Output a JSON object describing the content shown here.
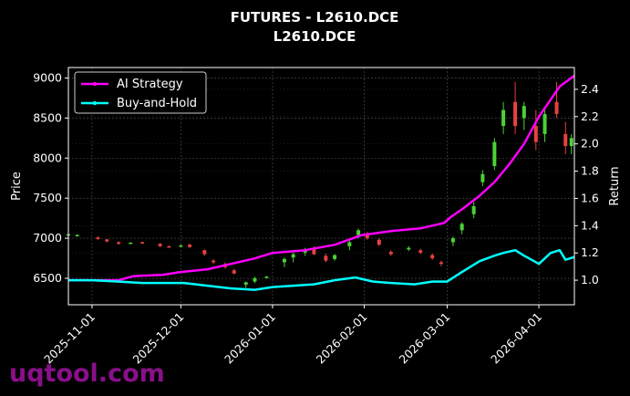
{
  "chart_data": {
    "type": "line",
    "title": "FUTURES - L2610.DCE",
    "subtitle": "L2610.DCE",
    "ylabel_left": "Price",
    "ylabel_right": "Return",
    "watermark": "uqtool.com",
    "grid": true,
    "legend_placement": "top-left",
    "background": "#000000",
    "colors": {
      "ai_strategy": "#ff00ff",
      "buy_and_hold": "#00ffff",
      "candle_up": "#4cd137",
      "candle_down": "#e84141",
      "grid": "#555555"
    },
    "x_range": [
      "2025-10-24",
      "2026-04-13"
    ],
    "price_ylim": [
      6170,
      9130
    ],
    "return_ylim": [
      0.82,
      2.56
    ],
    "price_ticks": [
      6500,
      7000,
      7500,
      8000,
      8500,
      9000
    ],
    "return_ticks": [
      1.0,
      1.2,
      1.4,
      1.6,
      1.8,
      2.0,
      2.2,
      2.4
    ],
    "x_ticks": [
      "2025-11-01",
      "2025-12-01",
      "2026-01-01",
      "2026-02-01",
      "2026-03-01",
      "2026-04-01"
    ],
    "series": [
      {
        "name": "AI Strategy",
        "axis": "return",
        "points": [
          [
            "2025-10-24",
            1.0
          ],
          [
            "2025-11-01",
            1.0
          ],
          [
            "2025-11-10",
            1.0
          ],
          [
            "2025-11-15",
            1.03
          ],
          [
            "2025-11-25",
            1.04
          ],
          [
            "2025-12-01",
            1.06
          ],
          [
            "2025-12-10",
            1.08
          ],
          [
            "2025-12-18",
            1.12
          ],
          [
            "2025-12-26",
            1.16
          ],
          [
            "2026-01-01",
            1.2
          ],
          [
            "2026-01-12",
            1.22
          ],
          [
            "2026-01-22",
            1.26
          ],
          [
            "2026-01-31",
            1.33
          ],
          [
            "2026-02-10",
            1.36
          ],
          [
            "2026-02-20",
            1.38
          ],
          [
            "2026-02-28",
            1.42
          ],
          [
            "2026-03-02",
            1.46
          ],
          [
            "2026-03-06",
            1.52
          ],
          [
            "2026-03-12",
            1.62
          ],
          [
            "2026-03-17",
            1.72
          ],
          [
            "2026-03-22",
            1.85
          ],
          [
            "2026-03-27",
            2.0
          ],
          [
            "2026-04-01",
            2.2
          ],
          [
            "2026-04-08",
            2.42
          ],
          [
            "2026-04-13",
            2.5
          ]
        ]
      },
      {
        "name": "Buy-and-Hold",
        "axis": "return",
        "points": [
          [
            "2025-10-24",
            1.0
          ],
          [
            "2025-11-01",
            1.0
          ],
          [
            "2025-11-10",
            0.99
          ],
          [
            "2025-11-18",
            0.98
          ],
          [
            "2025-11-25",
            0.98
          ],
          [
            "2025-12-02",
            0.98
          ],
          [
            "2025-12-10",
            0.96
          ],
          [
            "2025-12-18",
            0.94
          ],
          [
            "2025-12-26",
            0.93
          ],
          [
            "2026-01-01",
            0.95
          ],
          [
            "2026-01-08",
            0.96
          ],
          [
            "2026-01-15",
            0.97
          ],
          [
            "2026-01-22",
            1.0
          ],
          [
            "2026-01-29",
            1.02
          ],
          [
            "2026-02-04",
            0.99
          ],
          [
            "2026-02-10",
            0.98
          ],
          [
            "2026-02-18",
            0.97
          ],
          [
            "2026-02-24",
            0.99
          ],
          [
            "2026-03-01",
            0.99
          ],
          [
            "2026-03-06",
            1.06
          ],
          [
            "2026-03-12",
            1.14
          ],
          [
            "2026-03-17",
            1.18
          ],
          [
            "2026-03-20",
            1.2
          ],
          [
            "2026-03-24",
            1.22
          ],
          [
            "2026-03-27",
            1.18
          ],
          [
            "2026-04-01",
            1.12
          ],
          [
            "2026-04-05",
            1.2
          ],
          [
            "2026-04-08",
            1.22
          ],
          [
            "2026-04-10",
            1.15
          ],
          [
            "2026-04-13",
            1.17
          ]
        ]
      }
    ],
    "candles_note": "OHLC candlesticks on the Price axis",
    "candles": [
      [
        "2025-10-24",
        7050,
        7060,
        7040,
        7050
      ],
      [
        "2025-10-27",
        7040,
        7050,
        7030,
        7040
      ],
      [
        "2025-11-03",
        7010,
        7020,
        6980,
        6990
      ],
      [
        "2025-11-06",
        6985,
        6990,
        6950,
        6960
      ],
      [
        "2025-11-10",
        6950,
        6960,
        6920,
        6930
      ],
      [
        "2025-11-14",
        6940,
        6950,
        6930,
        6945
      ],
      [
        "2025-11-18",
        6950,
        6960,
        6930,
        6935
      ],
      [
        "2025-11-24",
        6930,
        6940,
        6890,
        6900
      ],
      [
        "2025-11-27",
        6900,
        6910,
        6880,
        6890
      ],
      [
        "2025-12-01",
        6900,
        6920,
        6890,
        6910
      ],
      [
        "2025-12-04",
        6920,
        6930,
        6880,
        6890
      ],
      [
        "2025-12-09",
        6850,
        6860,
        6780,
        6800
      ],
      [
        "2025-12-12",
        6720,
        6740,
        6680,
        6700
      ],
      [
        "2025-12-16",
        6680,
        6700,
        6620,
        6640
      ],
      [
        "2025-12-19",
        6600,
        6620,
        6550,
        6560
      ],
      [
        "2025-12-23",
        6420,
        6460,
        6380,
        6450
      ],
      [
        "2025-12-26",
        6460,
        6520,
        6440,
        6500
      ],
      [
        "2025-12-30",
        6510,
        6530,
        6500,
        6520
      ],
      [
        "2026-01-05",
        6700,
        6760,
        6640,
        6740
      ],
      [
        "2026-01-08",
        6760,
        6820,
        6700,
        6800
      ],
      [
        "2026-01-12",
        6820,
        6880,
        6780,
        6860
      ],
      [
        "2026-01-15",
        6860,
        6900,
        6790,
        6800
      ],
      [
        "2026-01-19",
        6780,
        6810,
        6700,
        6720
      ],
      [
        "2026-01-22",
        6740,
        6800,
        6720,
        6790
      ],
      [
        "2026-01-27",
        6900,
        6970,
        6850,
        6950
      ],
      [
        "2026-01-30",
        7040,
        7120,
        7000,
        7100
      ],
      [
        "2026-02-02",
        7060,
        7080,
        6980,
        7000
      ],
      [
        "2026-02-06",
        6980,
        7000,
        6900,
        6920
      ],
      [
        "2026-02-10",
        6830,
        6850,
        6780,
        6800
      ],
      [
        "2026-02-16",
        6860,
        6900,
        6840,
        6880
      ],
      [
        "2026-02-20",
        6850,
        6870,
        6800,
        6820
      ],
      [
        "2026-02-24",
        6790,
        6810,
        6730,
        6750
      ],
      [
        "2026-02-27",
        6700,
        6720,
        6650,
        6680
      ],
      [
        "2026-03-03",
        6950,
        7020,
        6900,
        7000
      ],
      [
        "2026-03-06",
        7100,
        7200,
        7050,
        7180
      ],
      [
        "2026-03-10",
        7300,
        7450,
        7250,
        7400
      ],
      [
        "2026-03-13",
        7700,
        7850,
        7650,
        7800
      ],
      [
        "2026-03-17",
        7900,
        8250,
        7850,
        8200
      ],
      [
        "2026-03-20",
        8400,
        8700,
        8300,
        8600
      ],
      [
        "2026-03-24",
        8700,
        8950,
        8300,
        8400
      ],
      [
        "2026-03-27",
        8500,
        8700,
        8350,
        8650
      ],
      [
        "2026-03-31",
        8400,
        8600,
        8100,
        8200
      ],
      [
        "2026-04-03",
        8300,
        8600,
        8200,
        8550
      ],
      [
        "2026-04-07",
        8700,
        8950,
        8500,
        8550
      ],
      [
        "2026-04-10",
        8300,
        8450,
        8050,
        8150
      ],
      [
        "2026-04-12",
        8150,
        8300,
        8050,
        8250
      ]
    ]
  }
}
